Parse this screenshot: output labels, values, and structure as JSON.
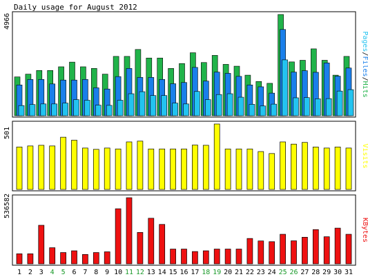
{
  "title": "Daily usage for August 2012",
  "colors": {
    "hits": "#21b34a",
    "files": "#1a7fea",
    "pages": "#23c3f0",
    "visits": "#ffff00",
    "kbytes": "#ee1111",
    "weekend_label": "#1a9a2a",
    "weekday_label": "#000000",
    "background": "#ffffff",
    "frame": "#000000"
  },
  "chart_data": [
    {
      "type": "bar",
      "name": "usage",
      "title": "Daily usage for August 2012",
      "ylabel_parts": [
        {
          "text": "Pages",
          "color_key": "pages"
        },
        {
          "text": "/",
          "color_key": "frame"
        },
        {
          "text": "Files",
          "color_key": "files"
        },
        {
          "text": "/",
          "color_key": "frame"
        },
        {
          "text": "Hits",
          "color_key": "hits"
        }
      ],
      "ymax_label": "4966",
      "ylim": [
        0,
        4966
      ],
      "categories": [
        "1",
        "2",
        "3",
        "4",
        "5",
        "6",
        "7",
        "8",
        "9",
        "10",
        "11",
        "12",
        "13",
        "14",
        "15",
        "16",
        "17",
        "18",
        "19",
        "20",
        "21",
        "22",
        "23",
        "24",
        "25",
        "26",
        "27",
        "28",
        "29",
        "30",
        "31"
      ],
      "weekend_days": [
        "4",
        "5",
        "11",
        "12",
        "18",
        "19",
        "25",
        "26"
      ],
      "series": [
        {
          "name": "Hits",
          "color_key": "hits",
          "values": [
            1905,
            2040,
            2220,
            2220,
            2400,
            2630,
            2400,
            2320,
            2040,
            2910,
            2910,
            3250,
            2830,
            2830,
            2320,
            2560,
            3090,
            2610,
            2960,
            2520,
            2430,
            1990,
            1680,
            1590,
            4966,
            2640,
            2720,
            3280,
            2720,
            1990,
            2910
          ]
        },
        {
          "name": "Files",
          "color_key": "files",
          "values": [
            1510,
            1780,
            1780,
            1560,
            1750,
            1750,
            1780,
            1370,
            1310,
            1920,
            2320,
            1880,
            1880,
            1780,
            1570,
            1630,
            2370,
            1700,
            2140,
            2080,
            1930,
            1510,
            1420,
            1110,
            4230,
            2140,
            2210,
            2130,
            2590,
            1940,
            2340
          ]
        },
        {
          "name": "Pages",
          "color_key": "pages",
          "values": [
            500,
            550,
            580,
            580,
            620,
            790,
            760,
            520,
            510,
            760,
            1080,
            1180,
            990,
            990,
            620,
            580,
            1190,
            790,
            1040,
            1080,
            910,
            560,
            480,
            570,
            2740,
            880,
            890,
            830,
            840,
            1210,
            1280
          ]
        }
      ]
    },
    {
      "type": "bar",
      "name": "visits",
      "ylabel": "Visits",
      "ylabel_color_key": "visits",
      "ymax_label": "501",
      "ylim": [
        0,
        501
      ],
      "categories": [
        "1",
        "2",
        "3",
        "4",
        "5",
        "6",
        "7",
        "8",
        "9",
        "10",
        "11",
        "12",
        "13",
        "14",
        "15",
        "16",
        "17",
        "18",
        "19",
        "20",
        "21",
        "22",
        "23",
        "24",
        "25",
        "26",
        "27",
        "28",
        "29",
        "30",
        "31"
      ],
      "series": [
        {
          "name": "Visits",
          "color_key": "visits",
          "values": [
            325,
            333,
            338,
            333,
            400,
            377,
            317,
            307,
            317,
            310,
            364,
            370,
            310,
            310,
            310,
            310,
            340,
            338,
            501,
            310,
            310,
            310,
            290,
            275,
            364,
            347,
            360,
            325,
            317,
            325,
            317
          ]
        }
      ]
    },
    {
      "type": "bar",
      "name": "kbytes",
      "ylabel": "KBytes",
      "ylabel_color_key": "kbytes",
      "ymax_label": "536582",
      "ylim": [
        0,
        536582
      ],
      "categories": [
        "1",
        "2",
        "3",
        "4",
        "5",
        "6",
        "7",
        "8",
        "9",
        "10",
        "11",
        "12",
        "13",
        "14",
        "15",
        "16",
        "17",
        "18",
        "19",
        "20",
        "21",
        "22",
        "23",
        "24",
        "25",
        "26",
        "27",
        "28",
        "29",
        "30",
        "31"
      ],
      "series": [
        {
          "name": "KBytes",
          "color_key": "kbytes",
          "values": [
            81600,
            81600,
            313000,
            131000,
            91900,
            106000,
            76200,
            91900,
            97800,
            447000,
            536582,
            255000,
            370000,
            320000,
            120000,
            120000,
            100000,
            106000,
            120000,
            120000,
            120000,
            206000,
            186000,
            180000,
            240000,
            187000,
            216000,
            278000,
            220000,
            290000,
            240000
          ]
        }
      ]
    }
  ]
}
